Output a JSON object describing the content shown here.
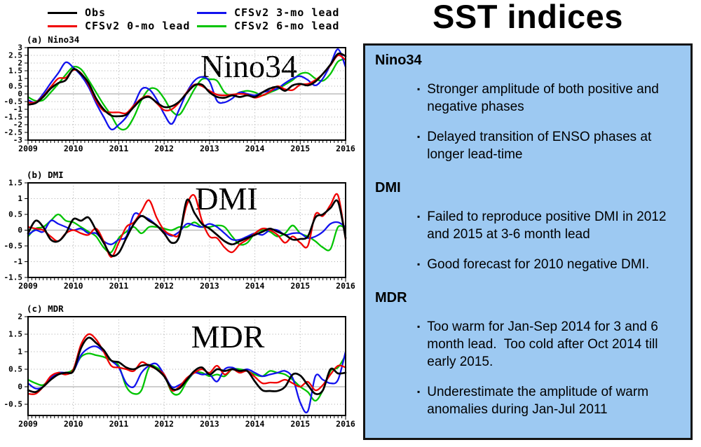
{
  "legend": {
    "items": [
      {
        "label": "Obs",
        "color": "#000000"
      },
      {
        "label": "CFSv2 0-mo lead",
        "color": "#f00000"
      },
      {
        "label": "CFSv2 3-mo lead",
        "color": "#1212ee"
      },
      {
        "label": "CFSv2 6-mo lead",
        "color": "#00c400"
      }
    ]
  },
  "right_panel": {
    "title": "SST indices",
    "bg_color": "#9dc9f2",
    "border_color": "#141414",
    "bullet_char": "▪",
    "sections": [
      {
        "heading": "Nino34",
        "bullets": [
          "Stronger amplitude of both positive and negative phases",
          "Delayed transition of ENSO phases at longer lead-time"
        ]
      },
      {
        "heading": "DMI",
        "bullets": [
          "Failed to reproduce positive DMI in 2012 and 2015 at 3-6 month lead",
          "Good forecast for 2010 negative DMI."
        ]
      },
      {
        "heading": "MDR",
        "bullets": [
          "Too warm for Jan-Sep 2014 for 3 and 6 month lead.  Too cold after Oct 2014 till early 2015.",
          "Underestimate the amplitude of warm anomalies during Jan-Jul 2011"
        ]
      }
    ]
  },
  "chart_data": [
    {
      "type": "line",
      "panel_label": "(a) Nino34",
      "big_label": "Nino34",
      "xlim": [
        2009,
        2016
      ],
      "x_start": 2009,
      "x_step_years": 0.1666667,
      "xtick_values": [
        2009,
        2010,
        2011,
        2012,
        2013,
        2014,
        2015,
        2016
      ],
      "xtick_labels": [
        "2009",
        "2010",
        "2011",
        "2012",
        "2013",
        "2014",
        "2015",
        "2016"
      ],
      "ylim": [
        -3,
        3
      ],
      "ytick_values": [
        3,
        2.5,
        2,
        1.5,
        1,
        0.5,
        0,
        -0.5,
        -1,
        -1.5,
        -2,
        -2.5,
        -3
      ],
      "ytick_labels": [
        "3",
        "2.5",
        "2",
        "1.5",
        "1",
        "0.5",
        "0",
        "-0.5",
        "-1",
        "-1.5",
        "-2",
        "-2.5",
        "-3"
      ],
      "grid": true,
      "legend_position": "top-outside",
      "series": [
        {
          "name": "Obs",
          "color": "#000000",
          "values": [
            -0.7,
            -0.6,
            -0.2,
            0.35,
            0.7,
            0.9,
            1.6,
            1.3,
            0.7,
            -0.3,
            -1.0,
            -1.4,
            -1.45,
            -1.35,
            -0.85,
            -0.35,
            -0.2,
            -0.55,
            -0.85,
            -0.8,
            -0.5,
            0.05,
            0.55,
            0.6,
            0.1,
            -0.2,
            -0.25,
            -0.1,
            -0.2,
            -0.1,
            -0.2,
            0.1,
            0.35,
            0.45,
            0.2,
            0.55,
            0.65,
            0.55,
            0.8,
            1.3,
            1.9,
            2.6,
            2.45
          ]
        },
        {
          "name": "CFSv2 0-mo lead",
          "color": "#f00000",
          "values": [
            -0.55,
            -0.55,
            -0.15,
            0.45,
            1.0,
            1.05,
            1.55,
            1.35,
            0.6,
            -0.45,
            -1.1,
            -1.2,
            -1.2,
            -1.25,
            -0.75,
            -0.3,
            -0.15,
            -0.6,
            -1.05,
            -1.0,
            -0.55,
            0.1,
            0.6,
            0.5,
            0.2,
            -0.05,
            -0.1,
            -0.05,
            0.0,
            -0.05,
            -0.25,
            -0.1,
            0.15,
            0.5,
            0.3,
            0.25,
            0.6,
            0.65,
            0.9,
            1.3,
            1.85,
            2.5,
            2.2
          ]
        },
        {
          "name": "CFSv2 3-mo lead",
          "color": "#1212ee",
          "values": [
            -0.4,
            -0.55,
            0.0,
            0.7,
            1.35,
            2.05,
            1.7,
            1.2,
            0.45,
            -0.6,
            -1.5,
            -2.3,
            -2.0,
            -1.5,
            -0.7,
            0.3,
            0.3,
            -0.35,
            -1.3,
            -1.95,
            -1.0,
            0.1,
            0.85,
            1.1,
            0.8,
            -0.45,
            -0.55,
            -0.3,
            0.1,
            0.0,
            -0.1,
            0.1,
            0.2,
            0.35,
            0.7,
            1.0,
            1.15,
            0.9,
            0.55,
            1.0,
            1.9,
            2.9,
            1.75
          ]
        },
        {
          "name": "CFSv2 6-mo lead",
          "color": "#00c400",
          "values": [
            -0.2,
            -0.45,
            -0.4,
            0.1,
            0.65,
            1.25,
            1.75,
            1.6,
            0.9,
            0.1,
            -0.7,
            -1.4,
            -2.2,
            -2.25,
            -1.5,
            -0.4,
            0.3,
            0.3,
            -0.3,
            -1.1,
            -1.35,
            -0.6,
            0.3,
            0.95,
            0.95,
            0.85,
            0.1,
            -0.1,
            0.1,
            0.2,
            0.1,
            -0.1,
            0.1,
            0.3,
            0.6,
            0.9,
            1.3,
            1.35,
            1.0,
            0.85,
            1.3,
            2.1,
            2.25
          ]
        }
      ]
    },
    {
      "type": "line",
      "panel_label": "(b) DMI",
      "big_label": "DMI",
      "xlim": [
        2009,
        2016
      ],
      "x_start": 2009,
      "x_step_years": 0.1666667,
      "xtick_values": [
        2009,
        2010,
        2011,
        2012,
        2013,
        2014,
        2015,
        2016
      ],
      "xtick_labels": [
        "2009",
        "2010",
        "2011",
        "2012",
        "2013",
        "2014",
        "2015",
        "2016"
      ],
      "ylim": [
        -1.5,
        1.5
      ],
      "ytick_values": [
        1.5,
        1,
        0.5,
        0,
        -0.5,
        -1,
        -1.5
      ],
      "ytick_labels": [
        "1.5",
        "1",
        "0.5",
        "0",
        "-0.5",
        "-1",
        "-1.5"
      ],
      "grid": true,
      "series": [
        {
          "name": "Obs",
          "color": "#000000",
          "values": [
            -0.1,
            0.3,
            0.1,
            -0.3,
            -0.35,
            -0.1,
            0.35,
            0.3,
            0.4,
            0.0,
            -0.4,
            -0.8,
            -0.72,
            -0.25,
            0.2,
            0.45,
            0.3,
            0.15,
            -0.1,
            -0.4,
            -0.2,
            0.95,
            0.55,
            0.2,
            0.05,
            -0.15,
            -0.35,
            -0.45,
            -0.35,
            -0.25,
            -0.15,
            -0.05,
            0.05,
            -0.05,
            -0.15,
            -0.3,
            -0.28,
            -0.2,
            0.4,
            0.5,
            0.7,
            0.9,
            -0.25
          ]
        },
        {
          "name": "CFSv2 0-mo lead",
          "color": "#f00000",
          "values": [
            0.1,
            0.05,
            0.0,
            -0.2,
            -0.35,
            -0.1,
            0.0,
            -0.1,
            -0.15,
            0.05,
            -0.35,
            -0.85,
            -0.4,
            0.1,
            0.25,
            0.6,
            0.95,
            0.4,
            0.0,
            -0.15,
            -0.12,
            0.8,
            1.1,
            0.3,
            -0.2,
            -0.25,
            -0.55,
            -0.7,
            -0.45,
            -0.3,
            -0.1,
            0.05,
            0.0,
            -0.15,
            -0.4,
            -0.2,
            -0.4,
            -0.5,
            0.5,
            0.45,
            0.8,
            1.1,
            -0.3
          ]
        },
        {
          "name": "CFSv2 3-mo lead",
          "color": "#1212ee",
          "values": [
            -0.15,
            0.0,
            -0.05,
            0.3,
            0.2,
            0.1,
            0.0,
            0.05,
            -0.1,
            -0.1,
            -0.35,
            -0.45,
            -0.3,
            -0.2,
            0.5,
            0.45,
            0.35,
            0.15,
            -0.05,
            -0.18,
            -0.05,
            0.2,
            0.15,
            0.1,
            0.2,
            0.1,
            -0.1,
            -0.3,
            -0.3,
            -0.2,
            -0.1,
            -0.15,
            0.0,
            0.0,
            -0.15,
            -0.1,
            -0.1,
            -0.25,
            -0.2,
            -0.05,
            0.2,
            0.25,
            0.1
          ]
        },
        {
          "name": "CFSv2 6-mo lead",
          "color": "#00c400",
          "values": [
            -0.2,
            0.05,
            0.1,
            0.3,
            0.5,
            0.3,
            0.25,
            0.1,
            -0.05,
            -0.2,
            -0.55,
            -0.7,
            -0.25,
            -0.05,
            0.1,
            -0.1,
            0.1,
            0.1,
            0.05,
            0.0,
            0.1,
            0.1,
            0.25,
            0.1,
            0.1,
            0.15,
            0.1,
            -0.2,
            -0.45,
            -0.4,
            -0.1,
            0.0,
            -0.05,
            -0.2,
            -0.1,
            0.15,
            -0.1,
            -0.2,
            -0.35,
            -0.55,
            -0.6,
            0.1,
            0.05
          ]
        }
      ]
    },
    {
      "type": "line",
      "panel_label": "(c) MDR",
      "big_label": "MDR",
      "xlim": [
        2009,
        2016
      ],
      "x_start": 2009,
      "x_step_years": 0.1666667,
      "xtick_values": [
        2009,
        2010,
        2011,
        2012,
        2013,
        2014,
        2015,
        2016
      ],
      "xtick_labels": [
        "2009",
        "2010",
        "2011",
        "2012",
        "2013",
        "2014",
        "2015",
        "2016"
      ],
      "ylim": [
        -0.82,
        2
      ],
      "ytick_values": [
        2,
        1.5,
        1,
        0.5,
        0,
        -0.5
      ],
      "ytick_labels": [
        "2",
        "1.5",
        "1",
        "0.5",
        "0",
        "-0.5"
      ],
      "grid": true,
      "series": [
        {
          "name": "Obs",
          "color": "#000000",
          "values": [
            -0.1,
            -0.15,
            0.0,
            0.2,
            0.35,
            0.4,
            0.45,
            1.1,
            1.4,
            1.25,
            1.05,
            0.75,
            0.7,
            0.55,
            0.5,
            0.6,
            0.62,
            0.5,
            0.3,
            -0.05,
            -0.05,
            0.2,
            0.45,
            0.55,
            0.35,
            0.5,
            0.45,
            0.5,
            0.45,
            0.45,
            0.15,
            -0.1,
            -0.12,
            -0.12,
            0.0,
            0.35,
            0.32,
            0.05,
            -0.2,
            -0.1,
            0.5,
            0.38,
            0.4
          ]
        },
        {
          "name": "CFSv2 0-mo lead",
          "color": "#f00000",
          "values": [
            -0.2,
            -0.2,
            0.0,
            0.3,
            0.4,
            0.35,
            0.5,
            1.2,
            1.5,
            1.35,
            1.0,
            0.6,
            0.55,
            0.5,
            0.45,
            0.7,
            0.6,
            0.5,
            0.35,
            -0.1,
            0.0,
            0.25,
            0.4,
            0.5,
            0.4,
            0.6,
            0.35,
            0.5,
            0.4,
            0.45,
            0.28,
            0.1,
            0.12,
            0.12,
            0.2,
            0.1,
            0.0,
            0.14,
            -0.1,
            0.05,
            0.35,
            0.6,
            0.55
          ]
        },
        {
          "name": "CFSv2 3-mo lead",
          "color": "#1212ee",
          "values": [
            0.1,
            -0.05,
            0.0,
            0.25,
            0.4,
            0.4,
            0.45,
            0.9,
            1.1,
            1.15,
            1.0,
            0.75,
            0.55,
            0.1,
            0.0,
            0.4,
            0.6,
            0.65,
            0.35,
            0.0,
            0.05,
            0.2,
            0.4,
            0.35,
            0.35,
            0.15,
            0.5,
            0.55,
            0.45,
            0.5,
            0.4,
            0.3,
            0.35,
            0.4,
            0.45,
            0.25,
            -0.45,
            -0.7,
            0.3,
            0.2,
            0.1,
            0.2,
            1.0
          ]
        },
        {
          "name": "CFSv2 6-mo lead",
          "color": "#00c400",
          "values": [
            0.2,
            0.1,
            0.05,
            0.25,
            0.4,
            0.4,
            0.5,
            0.85,
            0.95,
            0.9,
            0.85,
            0.75,
            0.6,
            0.0,
            -0.2,
            -0.1,
            0.55,
            0.55,
            0.35,
            -0.15,
            -0.2,
            0.15,
            0.4,
            0.4,
            0.3,
            0.35,
            0.3,
            0.5,
            0.5,
            0.45,
            0.35,
            0.3,
            0.45,
            0.4,
            0.35,
            0.2,
            0.0,
            -0.15,
            -0.4,
            -0.1,
            0.45,
            0.55,
            0.9
          ]
        }
      ]
    }
  ]
}
